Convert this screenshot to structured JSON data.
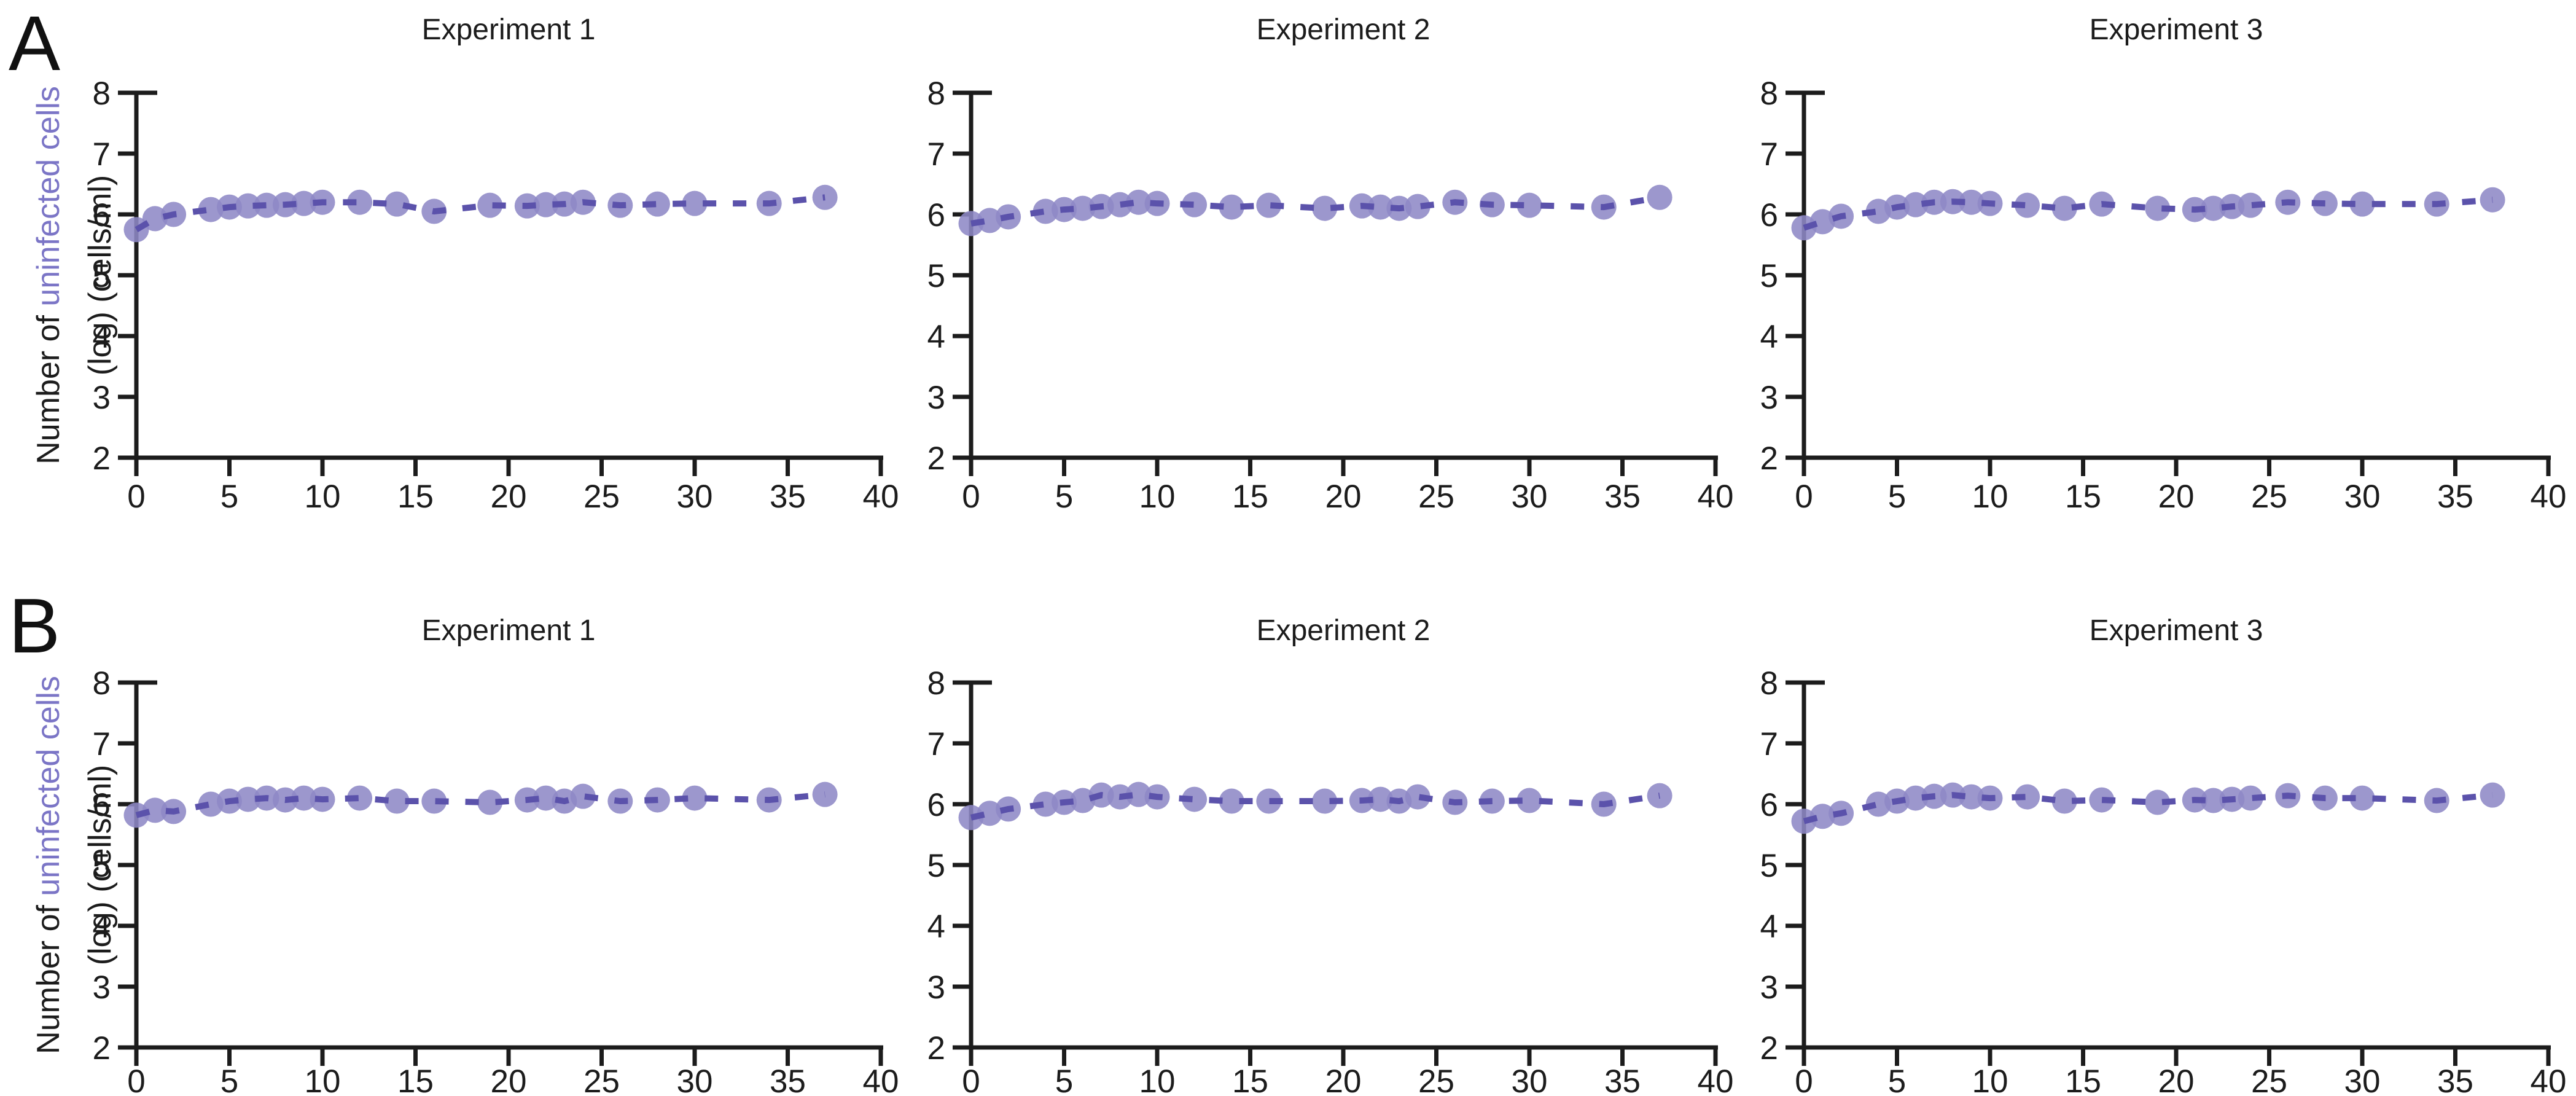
{
  "figure_labels": {
    "panel_a": "A",
    "panel_b": "B"
  },
  "ylabel": {
    "prefix": "Number of ",
    "highlight": "uninfected cells",
    "line2": "(log) (cells/ml)"
  },
  "colors": {
    "marker": "#8e89c6",
    "trend_line": "#5b52ab",
    "ylabel_highlight": "#7b75c6",
    "axis": "#1c1c1c",
    "text": "#1c1c1c",
    "background": "#ffffff"
  },
  "chart_data": {
    "type": "scatter",
    "title": "",
    "xlabel": "",
    "ylabel_line1": "Number of uninfected cells",
    "ylabel_line2": "(log) (cells/ml)",
    "xlim": [
      0,
      40
    ],
    "ylim": [
      2,
      8
    ],
    "x_ticks": [
      0,
      5,
      10,
      15,
      20,
      25,
      30,
      35,
      40
    ],
    "y_ticks": [
      2,
      3,
      4,
      5,
      6,
      7,
      8
    ],
    "grid": false,
    "legend_position": "none",
    "marker_style": "filled-circle-dashed-line",
    "x": [
      0,
      1,
      2,
      4,
      5,
      6,
      7,
      8,
      9,
      10,
      12,
      14,
      16,
      19,
      21,
      22,
      23,
      24,
      26,
      28,
      30,
      34,
      37
    ],
    "panels": [
      {
        "row": "A",
        "col": 0,
        "title": "Experiment 1",
        "y": [
          5.75,
          5.93,
          6.0,
          6.08,
          6.12,
          6.14,
          6.15,
          6.16,
          6.18,
          6.2,
          6.2,
          6.17,
          6.05,
          6.15,
          6.14,
          6.16,
          6.17,
          6.2,
          6.15,
          6.17,
          6.18,
          6.18,
          6.28
        ]
      },
      {
        "row": "A",
        "col": 1,
        "title": "Experiment 2",
        "y": [
          5.85,
          5.9,
          5.96,
          6.05,
          6.08,
          6.1,
          6.13,
          6.16,
          6.2,
          6.18,
          6.16,
          6.12,
          6.15,
          6.1,
          6.14,
          6.12,
          6.1,
          6.13,
          6.2,
          6.16,
          6.15,
          6.12,
          6.28
        ]
      },
      {
        "row": "A",
        "col": 2,
        "title": "Experiment 3",
        "y": [
          5.78,
          5.88,
          5.97,
          6.05,
          6.12,
          6.16,
          6.2,
          6.21,
          6.2,
          6.18,
          6.15,
          6.1,
          6.17,
          6.1,
          6.08,
          6.1,
          6.13,
          6.15,
          6.2,
          6.18,
          6.17,
          6.17,
          6.24
        ]
      },
      {
        "row": "B",
        "col": 0,
        "title": "Experiment 1",
        "y": [
          5.82,
          5.9,
          5.88,
          6.0,
          6.05,
          6.08,
          6.1,
          6.07,
          6.1,
          6.08,
          6.1,
          6.05,
          6.05,
          6.03,
          6.07,
          6.1,
          6.05,
          6.13,
          6.05,
          6.07,
          6.1,
          6.07,
          6.16
        ]
      },
      {
        "row": "B",
        "col": 1,
        "title": "Experiment 2",
        "y": [
          5.78,
          5.85,
          5.92,
          6.0,
          6.03,
          6.06,
          6.15,
          6.12,
          6.16,
          6.12,
          6.08,
          6.05,
          6.05,
          6.05,
          6.06,
          6.08,
          6.05,
          6.12,
          6.03,
          6.05,
          6.06,
          6.0,
          6.14
        ]
      },
      {
        "row": "B",
        "col": 2,
        "title": "Experiment 3",
        "y": [
          5.72,
          5.8,
          5.85,
          6.0,
          6.05,
          6.1,
          6.13,
          6.15,
          6.12,
          6.1,
          6.12,
          6.05,
          6.07,
          6.03,
          6.07,
          6.06,
          6.08,
          6.1,
          6.14,
          6.1,
          6.1,
          6.06,
          6.15
        ]
      }
    ]
  }
}
